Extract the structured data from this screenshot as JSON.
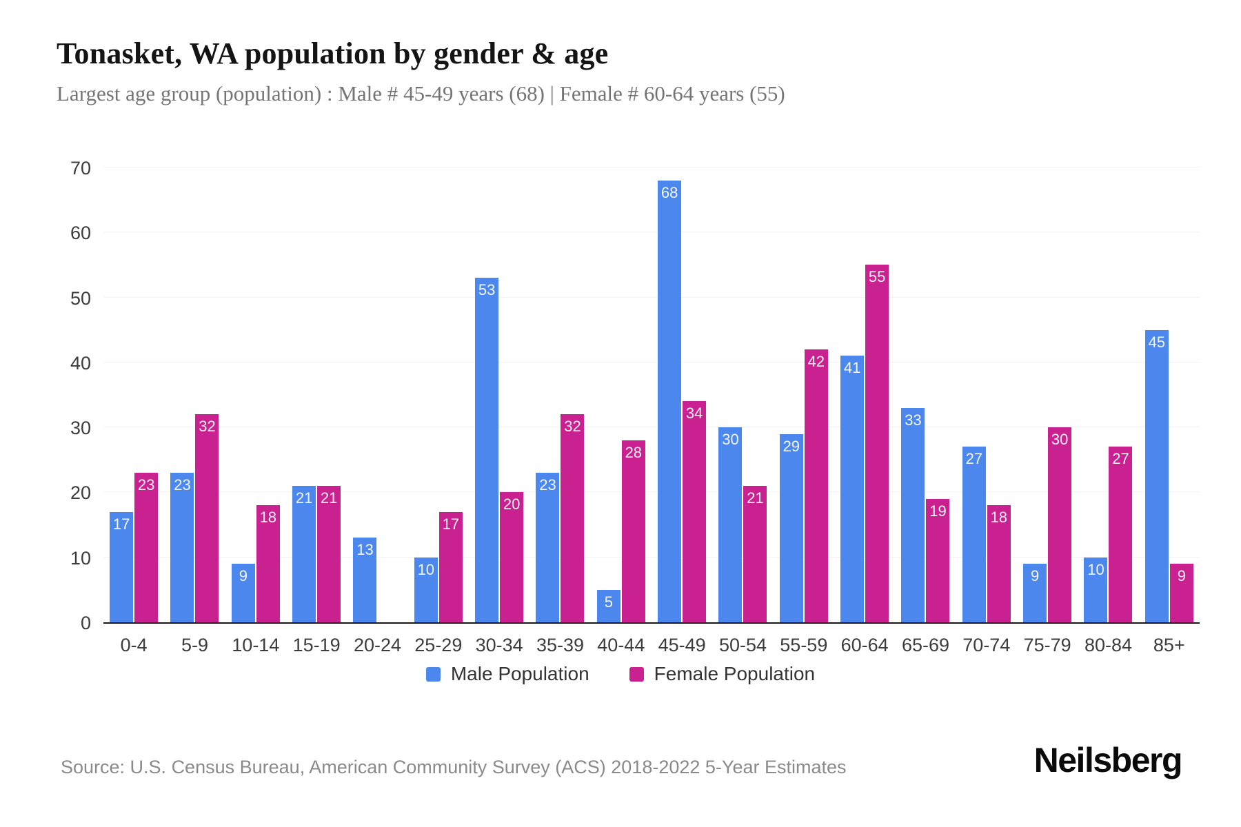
{
  "header": {
    "title": "Tonasket, WA population by gender & age",
    "subtitle": "Largest age group (population) : Male # 45-49 years (68) | Female # 60-64 years (55)"
  },
  "chart_data": {
    "type": "bar",
    "title": "Tonasket, WA population by gender & age",
    "categories": [
      "0-4",
      "5-9",
      "10-14",
      "15-19",
      "20-24",
      "25-29",
      "30-34",
      "35-39",
      "40-44",
      "45-49",
      "50-54",
      "55-59",
      "60-64",
      "65-69",
      "70-74",
      "75-79",
      "80-84",
      "85+"
    ],
    "series": [
      {
        "name": "Male Population",
        "color": "#4c87ed",
        "values": [
          17,
          23,
          9,
          21,
          13,
          10,
          53,
          23,
          5,
          68,
          30,
          29,
          41,
          33,
          27,
          9,
          10,
          45
        ]
      },
      {
        "name": "Female Population",
        "color": "#c9218f",
        "values": [
          23,
          32,
          18,
          21,
          0,
          17,
          20,
          32,
          28,
          34,
          21,
          42,
          55,
          19,
          18,
          30,
          27,
          9
        ]
      }
    ],
    "xlabel": "",
    "ylabel": "",
    "ylim": [
      0,
      70
    ],
    "yticks": [
      0,
      10,
      20,
      30,
      40,
      50,
      60,
      70
    ],
    "grid": true,
    "legend_position": "bottom",
    "value_labels": "inside-top",
    "value_label_color": "#ffffff",
    "gridline_color": "#f2f2f2",
    "axis_line_color": "#161616",
    "tick_label_color": "#3c3c3c"
  },
  "footer": {
    "source": "Source: U.S. Census Bureau, American Community Survey (ACS) 2018-2022 5-Year Estimates",
    "brand": "Neilsberg"
  }
}
